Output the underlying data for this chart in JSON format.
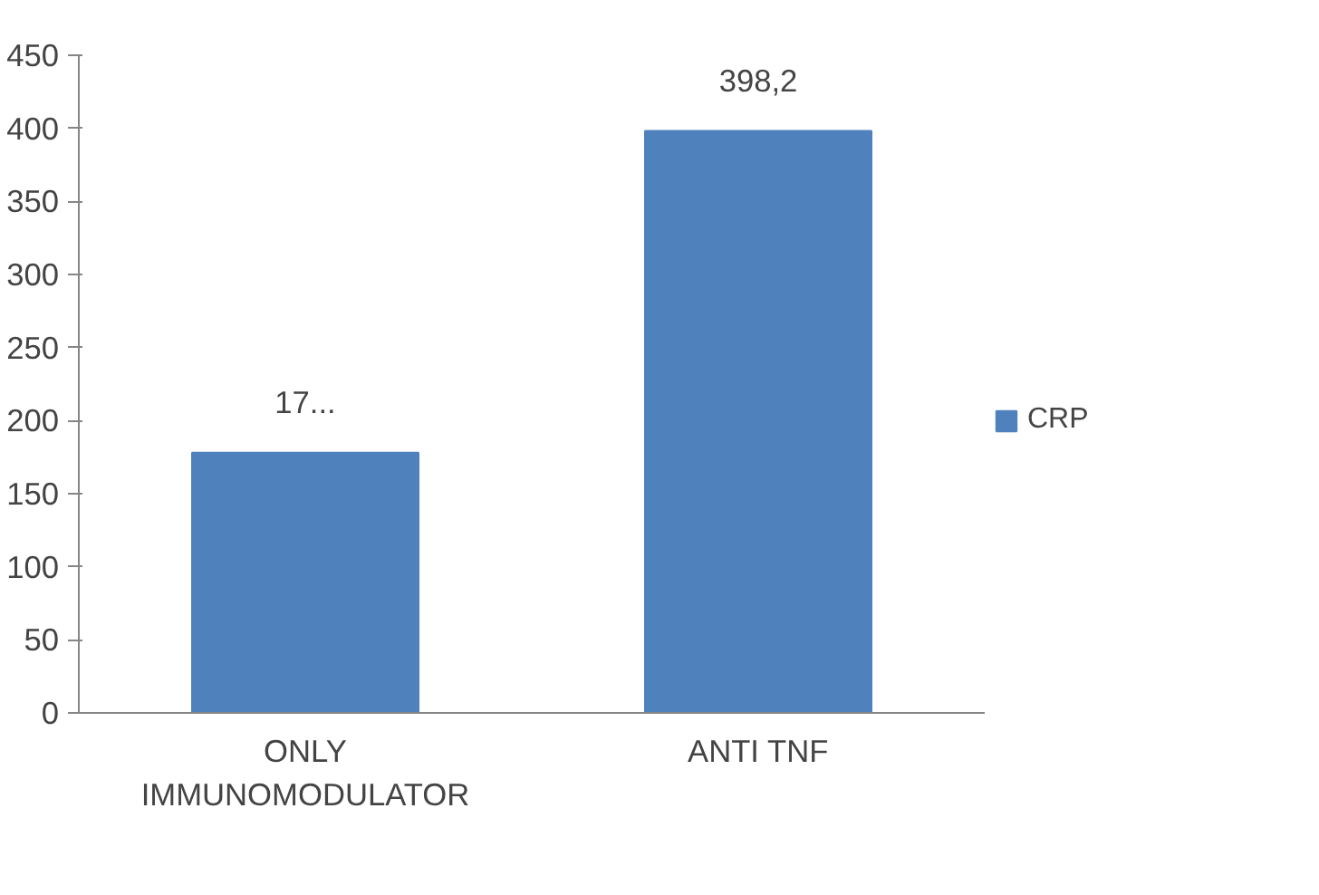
{
  "chart_data": {
    "type": "bar",
    "categories": [
      "ONLY\nIMMUNOMODULATOR",
      "ANTI TNF"
    ],
    "series": [
      {
        "name": "CRP",
        "color": "#4f81bd",
        "values": [
          178,
          398.2
        ],
        "value_labels": [
          "17...",
          "398,2"
        ]
      }
    ],
    "ylim": [
      0,
      450
    ],
    "yticks": [
      0,
      50,
      100,
      150,
      200,
      250,
      300,
      350,
      400,
      450
    ],
    "grid": false,
    "legend": "right"
  }
}
